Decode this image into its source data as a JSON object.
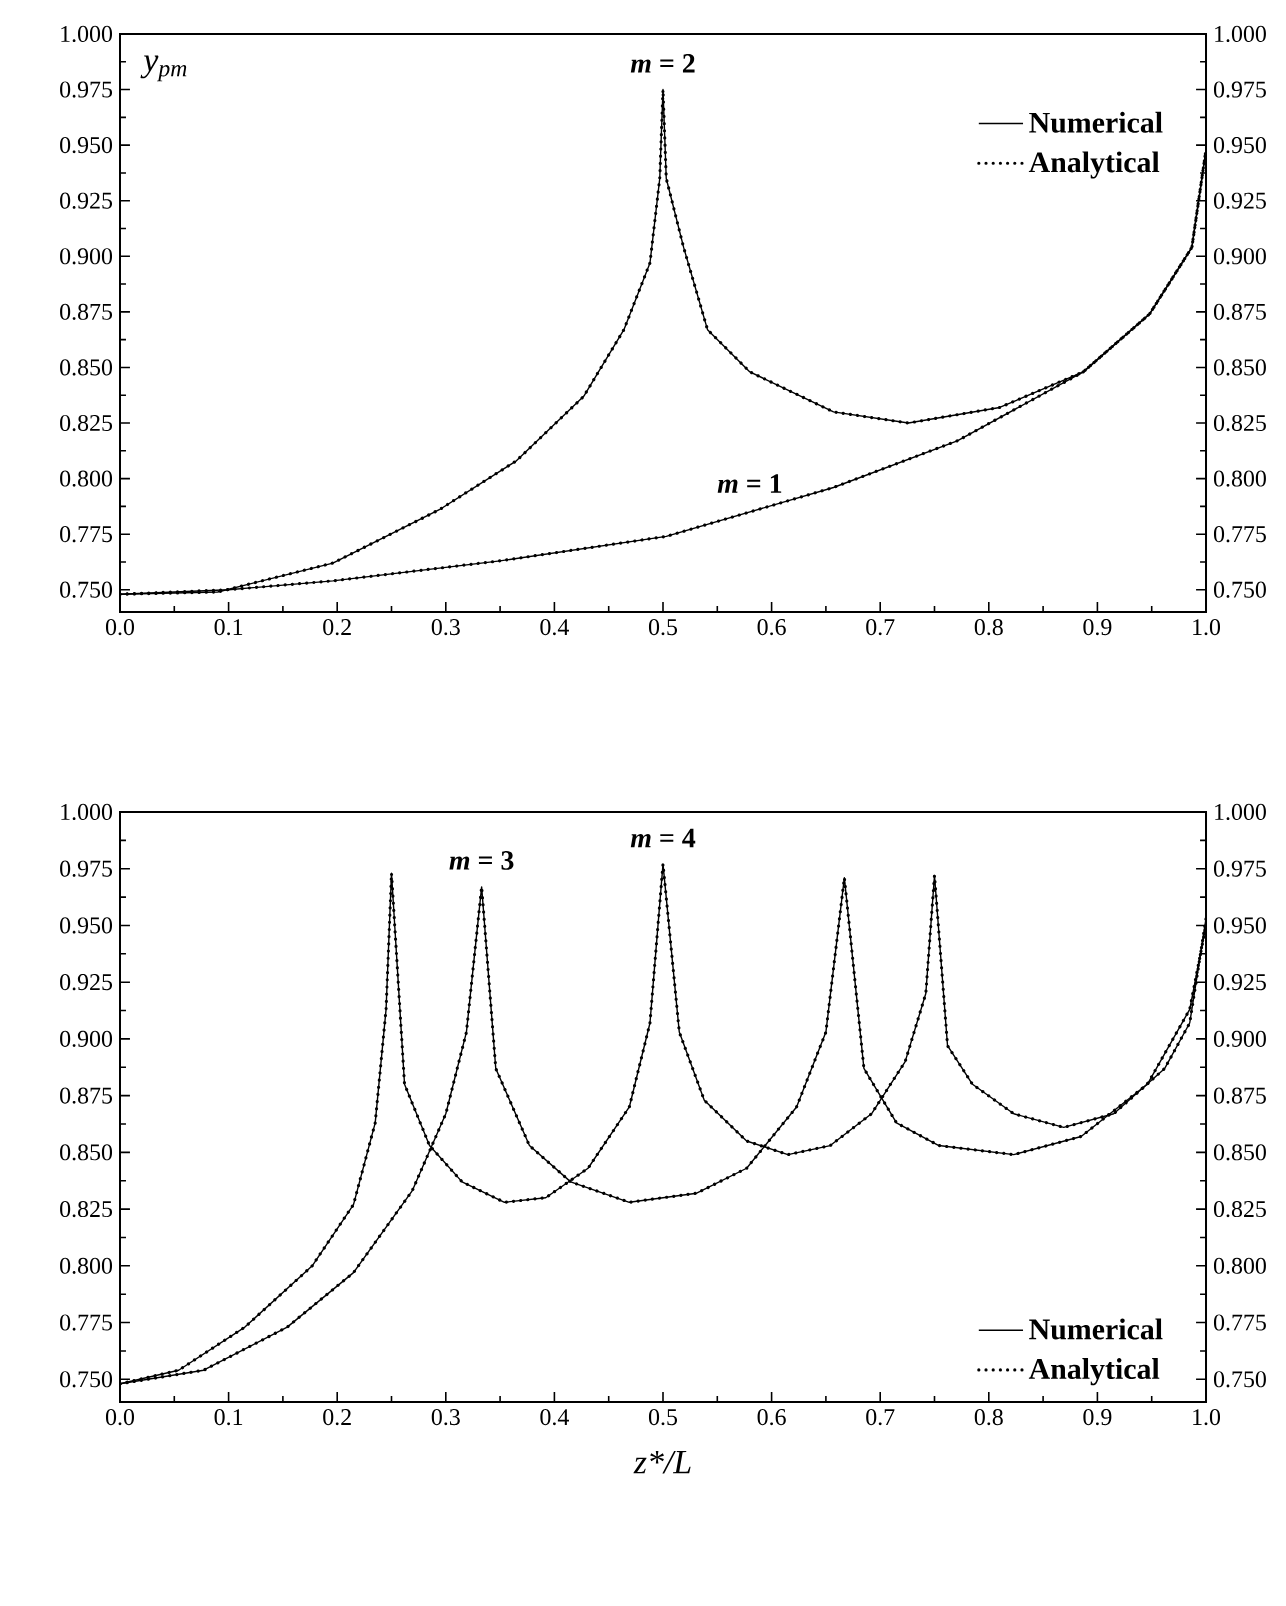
{
  "chart_data": [
    {
      "type": "line",
      "ylabel": "y$_{pm}$",
      "xlim": [
        0,
        1
      ],
      "ylim": [
        0.74,
        1.0
      ],
      "y2lim": [
        0.74,
        1.0
      ],
      "xticks": [
        {
          "value": 0,
          "label": "0.0"
        },
        {
          "value": 0.1,
          "label": "0.1"
        },
        {
          "value": 0.2,
          "label": "0.2"
        },
        {
          "value": 0.3,
          "label": "0.3"
        },
        {
          "value": 0.4,
          "label": "0.4"
        },
        {
          "value": 0.5,
          "label": "0.5"
        },
        {
          "value": 0.6,
          "label": "0.6"
        },
        {
          "value": 0.7,
          "label": "0.7"
        },
        {
          "value": 0.8,
          "label": "0.8"
        },
        {
          "value": 0.9,
          "label": "0.9"
        },
        {
          "value": 1,
          "label": "1.0"
        }
      ],
      "yticks": [
        {
          "value": 0.75,
          "label": "0.750"
        },
        {
          "value": 0.775,
          "label": "0.775"
        },
        {
          "value": 0.8,
          "label": "0.800"
        },
        {
          "value": 0.825,
          "label": "0.825"
        },
        {
          "value": 0.85,
          "label": "0.850"
        },
        {
          "value": 0.875,
          "label": "0.875"
        },
        {
          "value": 0.9,
          "label": "0.900"
        },
        {
          "value": 0.925,
          "label": "0.925"
        },
        {
          "value": 0.95,
          "label": "0.950"
        },
        {
          "value": 0.975,
          "label": "0.975"
        },
        {
          "value": 1,
          "label": "1.000"
        }
      ],
      "y2ticks": [
        {
          "value": 0.75,
          "label": "0.750"
        },
        {
          "value": 0.775,
          "label": "0.775"
        },
        {
          "value": 0.8,
          "label": "0.800"
        },
        {
          "value": 0.825,
          "label": "0.825"
        },
        {
          "value": 0.85,
          "label": "0.850"
        },
        {
          "value": 0.875,
          "label": "0.875"
        },
        {
          "value": 0.9,
          "label": "0.900"
        },
        {
          "value": 0.925,
          "label": "0.925"
        },
        {
          "value": 0.95,
          "label": "0.950"
        },
        {
          "value": 0.975,
          "label": "0.975"
        },
        {
          "value": 1,
          "label": "1.000"
        }
      ],
      "legend": "top right",
      "annotations": [
        {
          "text": "*m* = 1",
          "x": 0.58,
          "y": 0.786
        },
        {
          "text": "*m* = 2",
          "x": 0.5,
          "y": 0.975
        }
      ],
      "series": [
        {
          "name": "Numerical",
          "color": "#000000",
          "line_style": "solid",
          "x": [
            0,
            0.1,
            0.196,
            0.35,
            0.503,
            0.657,
            0.771,
            0.887,
            0.948,
            0.987,
            1.0
          ],
          "values": [
            0.748,
            0.75,
            0.754,
            0.763,
            0.774,
            0.796,
            0.817,
            0.848,
            0.874,
            0.904,
            0.948
          ]
        },
        {
          "color": "#000000",
          "line_style": "solid",
          "x": [
            0,
            0.09,
            0.196,
            0.294,
            0.365,
            0.427,
            0.464,
            0.488,
            0.497,
            0.5,
            0.503,
            0.519,
            0.541,
            0.58,
            0.657,
            0.726,
            0.81,
            0.887,
            0.948,
            0.987,
            1.0
          ],
          "values": [
            0.748,
            0.749,
            0.762,
            0.786,
            0.808,
            0.837,
            0.867,
            0.897,
            0.935,
            0.975,
            0.935,
            0.904,
            0.867,
            0.848,
            0.83,
            0.825,
            0.832,
            0.848,
            0.874,
            0.904,
            0.948
          ]
        },
        {
          "name": "Analytical",
          "color": "#000000",
          "line_style": "dotted",
          "x": [
            0,
            0.1,
            0.196,
            0.35,
            0.503,
            0.657,
            0.771,
            0.887,
            0.948,
            0.987,
            1.0
          ],
          "values": [
            0.748,
            0.75,
            0.754,
            0.763,
            0.774,
            0.796,
            0.817,
            0.848,
            0.874,
            0.904,
            0.948
          ]
        },
        {
          "color": "#000000",
          "line_style": "dotted",
          "x": [
            0,
            0.09,
            0.196,
            0.294,
            0.365,
            0.427,
            0.464,
            0.488,
            0.497,
            0.5,
            0.503,
            0.519,
            0.541,
            0.58,
            0.657,
            0.726,
            0.81,
            0.887,
            0.948,
            0.987,
            1.0
          ],
          "values": [
            0.748,
            0.749,
            0.762,
            0.786,
            0.808,
            0.837,
            0.867,
            0.897,
            0.935,
            0.975,
            0.935,
            0.904,
            0.867,
            0.848,
            0.83,
            0.825,
            0.832,
            0.848,
            0.874,
            0.904,
            0.948
          ]
        }
      ]
    },
    {
      "type": "line",
      "xlabel": "z*/L",
      "xlim": [
        0,
        1
      ],
      "ylim": [
        0.74,
        1.0
      ],
      "y2lim": [
        0.74,
        1.0
      ],
      "xticks": [
        {
          "value": 0,
          "label": "0.0"
        },
        {
          "value": 0.1,
          "label": "0.1"
        },
        {
          "value": 0.2,
          "label": "0.2"
        },
        {
          "value": 0.3,
          "label": "0.3"
        },
        {
          "value": 0.4,
          "label": "0.4"
        },
        {
          "value": 0.5,
          "label": "0.5"
        },
        {
          "value": 0.6,
          "label": "0.6"
        },
        {
          "value": 0.7,
          "label": "0.7"
        },
        {
          "value": 0.8,
          "label": "0.8"
        },
        {
          "value": 0.9,
          "label": "0.9"
        },
        {
          "value": 1,
          "label": "1.0"
        }
      ],
      "yticks": [
        {
          "value": 0.75,
          "label": "0.750"
        },
        {
          "value": 0.775,
          "label": "0.775"
        },
        {
          "value": 0.8,
          "label": "0.800"
        },
        {
          "value": 0.825,
          "label": "0.825"
        },
        {
          "value": 0.85,
          "label": "0.850"
        },
        {
          "value": 0.875,
          "label": "0.875"
        },
        {
          "value": 0.9,
          "label": "0.900"
        },
        {
          "value": 0.925,
          "label": "0.925"
        },
        {
          "value": 0.95,
          "label": "0.950"
        },
        {
          "value": 0.975,
          "label": "0.975"
        },
        {
          "value": 1,
          "label": "1.000"
        }
      ],
      "y2ticks": [
        {
          "value": 0.75,
          "label": "0.750"
        },
        {
          "value": 0.775,
          "label": "0.775"
        },
        {
          "value": 0.8,
          "label": "0.800"
        },
        {
          "value": 0.825,
          "label": "0.825"
        },
        {
          "value": 0.85,
          "label": "0.850"
        },
        {
          "value": 0.875,
          "label": "0.875"
        },
        {
          "value": 0.9,
          "label": "0.900"
        },
        {
          "value": 0.925,
          "label": "0.925"
        },
        {
          "value": 0.95,
          "label": "0.950"
        },
        {
          "value": 0.975,
          "label": "0.975"
        },
        {
          "value": 1,
          "label": "1.000"
        }
      ],
      "legend": "bottom right",
      "annotations": [
        {
          "text": "*m* = 3",
          "x": 0.333,
          "y": 0.967
        },
        {
          "text": "*m* = 4",
          "x": 0.5,
          "y": 0.977
        }
      ],
      "series": [
        {
          "name": "Numerical",
          "color": "#000000",
          "line_style": "solid",
          "x": [
            0,
            0.077,
            0.154,
            0.215,
            0.269,
            0.3,
            0.319,
            0.333,
            0.346,
            0.377,
            0.415,
            0.469,
            0.531,
            0.577,
            0.623,
            0.65,
            0.667,
            0.685,
            0.715,
            0.754,
            0.823,
            0.885,
            0.946,
            0.985,
            1.0
          ],
          "values": [
            0.748,
            0.754,
            0.773,
            0.797,
            0.833,
            0.867,
            0.903,
            0.967,
            0.887,
            0.853,
            0.837,
            0.828,
            0.832,
            0.843,
            0.87,
            0.903,
            0.971,
            0.887,
            0.863,
            0.853,
            0.849,
            0.857,
            0.88,
            0.913,
            0.95
          ]
        },
        {
          "color": "#000000",
          "line_style": "solid",
          "x": [
            0,
            0.054,
            0.115,
            0.177,
            0.215,
            0.235,
            0.245,
            0.25,
            0.262,
            0.285,
            0.315,
            0.354,
            0.392,
            0.431,
            0.469,
            0.488,
            0.5,
            0.515,
            0.538,
            0.577,
            0.615,
            0.654,
            0.692,
            0.723,
            0.742,
            0.75,
            0.762,
            0.785,
            0.823,
            0.869,
            0.915,
            0.962,
            0.985,
            1.0
          ],
          "values": [
            0.748,
            0.754,
            0.773,
            0.8,
            0.827,
            0.863,
            0.913,
            0.973,
            0.88,
            0.853,
            0.837,
            0.828,
            0.83,
            0.843,
            0.87,
            0.907,
            0.977,
            0.903,
            0.873,
            0.855,
            0.849,
            0.853,
            0.867,
            0.89,
            0.92,
            0.972,
            0.897,
            0.88,
            0.867,
            0.861,
            0.867,
            0.887,
            0.907,
            0.953
          ]
        },
        {
          "name": "Analytical",
          "color": "#000000",
          "line_style": "dotted",
          "x": [
            0,
            0.077,
            0.154,
            0.215,
            0.269,
            0.3,
            0.319,
            0.333,
            0.346,
            0.377,
            0.415,
            0.469,
            0.531,
            0.577,
            0.623,
            0.65,
            0.667,
            0.685,
            0.715,
            0.754,
            0.823,
            0.885,
            0.946,
            0.985,
            1.0
          ],
          "values": [
            0.748,
            0.754,
            0.773,
            0.797,
            0.833,
            0.867,
            0.903,
            0.967,
            0.887,
            0.853,
            0.837,
            0.828,
            0.832,
            0.843,
            0.87,
            0.903,
            0.971,
            0.887,
            0.863,
            0.853,
            0.849,
            0.857,
            0.88,
            0.913,
            0.95
          ]
        },
        {
          "color": "#000000",
          "line_style": "dotted",
          "x": [
            0,
            0.054,
            0.115,
            0.177,
            0.215,
            0.235,
            0.245,
            0.25,
            0.262,
            0.285,
            0.315,
            0.354,
            0.392,
            0.431,
            0.469,
            0.488,
            0.5,
            0.515,
            0.538,
            0.577,
            0.615,
            0.654,
            0.692,
            0.723,
            0.742,
            0.75,
            0.762,
            0.785,
            0.823,
            0.869,
            0.915,
            0.962,
            0.985,
            1.0
          ],
          "values": [
            0.748,
            0.754,
            0.773,
            0.8,
            0.827,
            0.863,
            0.913,
            0.973,
            0.88,
            0.853,
            0.837,
            0.828,
            0.83,
            0.843,
            0.87,
            0.907,
            0.977,
            0.903,
            0.873,
            0.855,
            0.849,
            0.853,
            0.867,
            0.89,
            0.92,
            0.972,
            0.897,
            0.88,
            0.867,
            0.861,
            0.867,
            0.887,
            0.907,
            0.953
          ]
        }
      ]
    }
  ]
}
